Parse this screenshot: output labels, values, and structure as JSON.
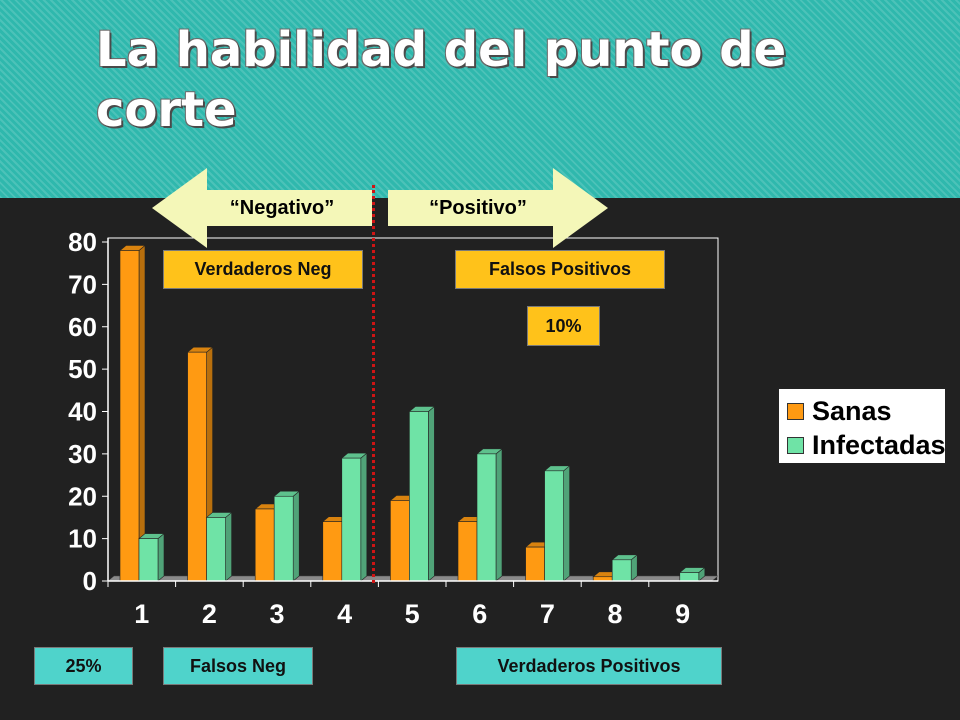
{
  "slide": {
    "title": "La habilidad del punto de corte"
  },
  "arrows": {
    "negative": "“Negativo”",
    "positive": "“Positivo”"
  },
  "labels": {
    "true_neg": "Verdaderos Neg",
    "false_pos": "Falsos Positivos",
    "false_pos_pct": "10%",
    "false_neg_pct": "25%",
    "false_neg": "Falsos Neg",
    "true_pos": "Verdaderos Positivos"
  },
  "colors": {
    "sanas": "#ff9a12",
    "infectadas": "#6fe3a6",
    "cutoff": "#d01414",
    "label_orange": "#ffc21a",
    "label_cyan": "#4fd3cb"
  },
  "chart_data": {
    "type": "bar",
    "categories": [
      "1",
      "2",
      "3",
      "4",
      "5",
      "6",
      "7",
      "8",
      "9"
    ],
    "series": [
      {
        "name": "Sanas",
        "values": [
          78,
          54,
          17,
          14,
          19,
          14,
          8,
          1,
          0
        ]
      },
      {
        "name": "Infectadas",
        "values": [
          10,
          15,
          20,
          29,
          40,
          30,
          26,
          5,
          2
        ]
      }
    ],
    "yticks": [
      "0",
      "10",
      "20",
      "30",
      "40",
      "50",
      "60",
      "70",
      "80"
    ],
    "ylim": [
      0,
      80
    ],
    "cutoff_between": [
      "4",
      "5"
    ],
    "legend_position": "right",
    "grid": false
  }
}
